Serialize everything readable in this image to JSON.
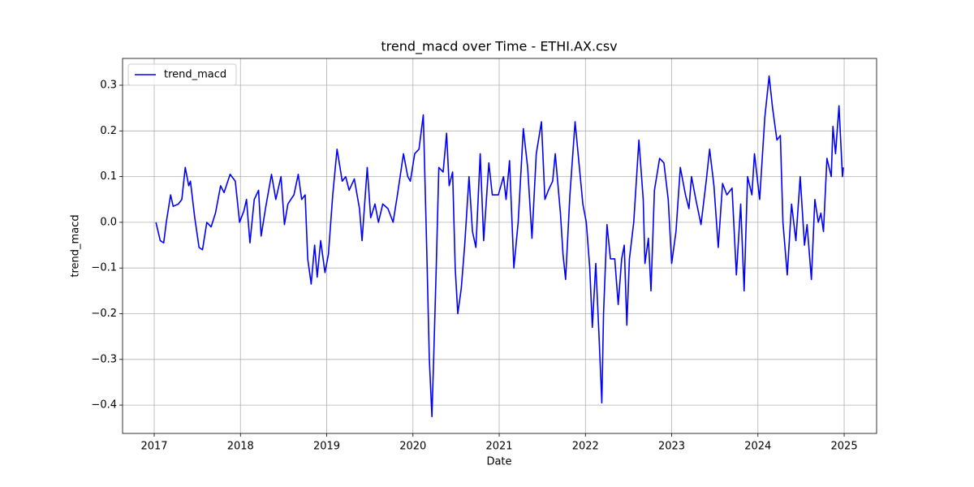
{
  "chart_data": {
    "type": "line",
    "title": "trend_macd over Time - ETHI.AX.csv",
    "x_label": "Date",
    "y_label": "trend_macd",
    "x": [
      2017.02,
      2017.07,
      2017.11,
      2017.14,
      2017.19,
      2017.22,
      2017.28,
      2017.32,
      2017.36,
      2017.4,
      2017.42,
      2017.47,
      2017.52,
      2017.56,
      2017.61,
      2017.66,
      2017.71,
      2017.77,
      2017.81,
      2017.88,
      2017.94,
      2017.99,
      2018.04,
      2018.07,
      2018.11,
      2018.16,
      2018.21,
      2018.24,
      2018.29,
      2018.36,
      2018.41,
      2018.47,
      2018.51,
      2018.55,
      2018.62,
      2018.67,
      2018.71,
      2018.75,
      2018.78,
      2018.82,
      2018.86,
      2018.89,
      2018.93,
      2018.98,
      2019.02,
      2019.07,
      2019.12,
      2019.18,
      2019.22,
      2019.26,
      2019.32,
      2019.38,
      2019.41,
      2019.47,
      2019.51,
      2019.56,
      2019.6,
      2019.65,
      2019.71,
      2019.77,
      2019.82,
      2019.89,
      2019.94,
      2019.97,
      2020.02,
      2020.07,
      2020.12,
      2020.16,
      2020.19,
      2020.22,
      2020.24,
      2020.27,
      2020.3,
      2020.35,
      2020.39,
      2020.42,
      2020.46,
      2020.49,
      2020.52,
      2020.56,
      2020.6,
      2020.65,
      2020.69,
      2020.73,
      2020.78,
      2020.82,
      2020.88,
      2020.92,
      2020.99,
      2021.05,
      2021.08,
      2021.12,
      2021.17,
      2021.22,
      2021.28,
      2021.33,
      2021.38,
      2021.43,
      2021.49,
      2021.53,
      2021.57,
      2021.62,
      2021.65,
      2021.71,
      2021.74,
      2021.77,
      2021.82,
      2021.88,
      2021.93,
      2021.97,
      2022.01,
      2022.05,
      2022.08,
      2022.12,
      2022.16,
      2022.19,
      2022.21,
      2022.25,
      2022.29,
      2022.34,
      2022.38,
      2022.42,
      2022.45,
      2022.48,
      2022.51,
      2022.56,
      2022.62,
      2022.67,
      2022.69,
      2022.73,
      2022.76,
      2022.8,
      2022.86,
      2022.91,
      2022.96,
      2023.0,
      2023.05,
      2023.1,
      2023.16,
      2023.2,
      2023.23,
      2023.28,
      2023.34,
      2023.4,
      2023.44,
      2023.49,
      2023.54,
      2023.59,
      2023.64,
      2023.7,
      2023.75,
      2023.8,
      2023.84,
      2023.88,
      2023.93,
      2023.96,
      2024.02,
      2024.08,
      2024.13,
      2024.17,
      2024.22,
      2024.26,
      2024.29,
      2024.34,
      2024.39,
      2024.44,
      2024.49,
      2024.54,
      2024.57,
      2024.62,
      2024.66,
      2024.7,
      2024.73,
      2024.76,
      2024.8,
      2024.85,
      2024.87,
      2024.9,
      2024.94,
      2024.98,
      2024.99
    ],
    "series": [
      {
        "name": "trend_macd",
        "color": "#0000ff",
        "values": [
          0.0,
          -0.04,
          -0.045,
          0.0,
          0.06,
          0.035,
          0.04,
          0.05,
          0.12,
          0.08,
          0.09,
          0.01,
          -0.055,
          -0.06,
          0.0,
          -0.01,
          0.02,
          0.08,
          0.065,
          0.105,
          0.09,
          0.0,
          0.025,
          0.05,
          -0.045,
          0.05,
          0.07,
          -0.03,
          0.03,
          0.105,
          0.05,
          0.1,
          -0.005,
          0.04,
          0.06,
          0.105,
          0.05,
          0.06,
          -0.08,
          -0.135,
          -0.05,
          -0.12,
          -0.04,
          -0.11,
          -0.07,
          0.06,
          0.16,
          0.09,
          0.1,
          0.07,
          0.095,
          0.03,
          -0.04,
          0.12,
          0.01,
          0.04,
          0.0,
          0.04,
          0.03,
          0.0,
          0.06,
          0.15,
          0.1,
          0.09,
          0.15,
          0.16,
          0.235,
          -0.06,
          -0.3,
          -0.425,
          -0.3,
          -0.1,
          0.12,
          0.11,
          0.195,
          0.08,
          0.11,
          -0.1,
          -0.2,
          -0.145,
          -0.05,
          0.1,
          -0.02,
          -0.055,
          0.15,
          -0.04,
          0.13,
          0.06,
          0.06,
          0.1,
          0.05,
          0.135,
          -0.1,
          0.0,
          0.205,
          0.12,
          -0.035,
          0.15,
          0.22,
          0.05,
          0.07,
          0.09,
          0.15,
          0.02,
          -0.07,
          -0.125,
          0.06,
          0.22,
          0.12,
          0.04,
          0.0,
          -0.1,
          -0.23,
          -0.09,
          -0.26,
          -0.395,
          -0.2,
          -0.005,
          -0.08,
          -0.08,
          -0.18,
          -0.08,
          -0.05,
          -0.225,
          -0.08,
          0.0,
          0.18,
          0.05,
          -0.09,
          -0.035,
          -0.15,
          0.07,
          0.14,
          0.13,
          0.05,
          -0.09,
          -0.02,
          0.12,
          0.06,
          0.03,
          0.1,
          0.05,
          -0.005,
          0.09,
          0.16,
          0.08,
          -0.055,
          0.085,
          0.06,
          0.075,
          -0.115,
          0.04,
          -0.15,
          0.1,
          0.06,
          0.15,
          0.05,
          0.23,
          0.32,
          0.25,
          0.18,
          0.19,
          0.0,
          -0.115,
          0.04,
          -0.04,
          0.1,
          -0.05,
          -0.005,
          -0.125,
          0.05,
          0.0,
          0.02,
          -0.02,
          0.14,
          0.1,
          0.21,
          0.15,
          0.255,
          0.1,
          0.12
        ]
      }
    ],
    "xlim": [
      2016.633,
      2025.376
    ],
    "xticks": [
      2017,
      2018,
      2019,
      2020,
      2021,
      2022,
      2023,
      2024,
      2025
    ],
    "ylim": [
      -0.462,
      0.3586
    ],
    "yticks": [
      {
        "value": -0.4,
        "label": "−0.4"
      },
      {
        "value": -0.3,
        "label": "−0.3"
      },
      {
        "value": -0.2,
        "label": "−0.2"
      },
      {
        "value": -0.1,
        "label": "−0.1"
      },
      {
        "value": 0,
        "label": "0.0"
      },
      0.1,
      0.2,
      0.3
    ],
    "grid": true,
    "legend": "upper left"
  }
}
